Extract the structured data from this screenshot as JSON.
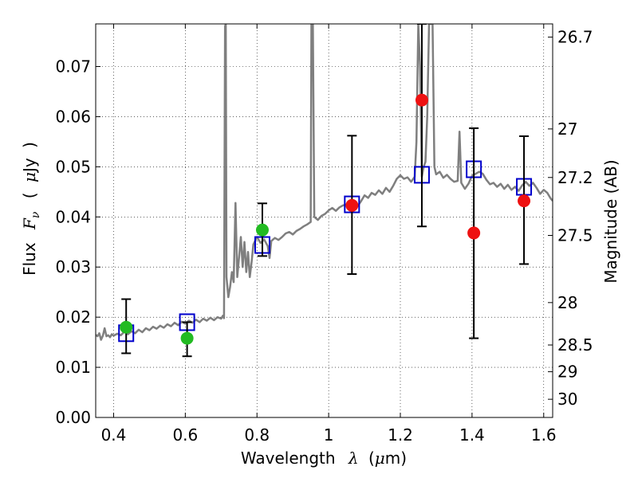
{
  "chart_data": {
    "type": "scatter",
    "x_axis": {
      "label_prefix": "Wavelength",
      "label_symbol": "λ",
      "label_unit_open": "(",
      "label_unit_mu": "μ",
      "label_unit_rest": "m)",
      "range": [
        0.35,
        1.625
      ],
      "ticks": [
        {
          "value": 0.4,
          "label": "0.4"
        },
        {
          "value": 0.6,
          "label": "0.6"
        },
        {
          "value": 0.8,
          "label": "0.8"
        },
        {
          "value": 1.0,
          "label": "1"
        },
        {
          "value": 1.2,
          "label": "1.2"
        },
        {
          "value": 1.4,
          "label": "1.4"
        },
        {
          "value": 1.6,
          "label": "1.6"
        }
      ]
    },
    "y_axis": {
      "label_prefix": "Flux",
      "label_symbol": "F",
      "label_subscript": "ν",
      "label_open": "(",
      "label_mu": "μ",
      "label_unit": "Jy",
      "label_close": ")",
      "range": [
        0.0,
        0.0785
      ],
      "ticks": [
        {
          "value": 0.0,
          "label": "0.00"
        },
        {
          "value": 0.01,
          "label": "0.01"
        },
        {
          "value": 0.02,
          "label": "0.02"
        },
        {
          "value": 0.03,
          "label": "0.03"
        },
        {
          "value": 0.04,
          "label": "0.04"
        },
        {
          "value": 0.05,
          "label": "0.05"
        },
        {
          "value": 0.06,
          "label": "0.06"
        },
        {
          "value": 0.07,
          "label": "0.07"
        }
      ]
    },
    "y2_axis": {
      "label": "Magnitude (AB)",
      "ticks": [
        {
          "value": 26.7,
          "label": "26.7"
        },
        {
          "value": 27.0,
          "label": "27"
        },
        {
          "value": 27.2,
          "label": "27.2"
        },
        {
          "value": 27.5,
          "label": "27.5"
        },
        {
          "value": 28.0,
          "label": "28"
        },
        {
          "value": 28.5,
          "label": "28.5"
        },
        {
          "value": 29.0,
          "label": "29"
        },
        {
          "value": 30.0,
          "label": "30"
        }
      ]
    },
    "grid": true,
    "series": [
      {
        "kind": "spectrum",
        "color": "#7f7f7f",
        "points": [
          [
            0.35,
            0.0165
          ],
          [
            0.355,
            0.0162
          ],
          [
            0.36,
            0.0168
          ],
          [
            0.365,
            0.0155
          ],
          [
            0.37,
            0.0163
          ],
          [
            0.375,
            0.0178
          ],
          [
            0.38,
            0.0162
          ],
          [
            0.385,
            0.0164
          ],
          [
            0.39,
            0.016
          ],
          [
            0.395,
            0.0166
          ],
          [
            0.4,
            0.0163
          ],
          [
            0.41,
            0.0167
          ],
          [
            0.42,
            0.0164
          ],
          [
            0.43,
            0.0171
          ],
          [
            0.44,
            0.0166
          ],
          [
            0.45,
            0.0172
          ],
          [
            0.46,
            0.0168
          ],
          [
            0.47,
            0.0175
          ],
          [
            0.48,
            0.017
          ],
          [
            0.49,
            0.0178
          ],
          [
            0.5,
            0.0174
          ],
          [
            0.51,
            0.0181
          ],
          [
            0.52,
            0.0177
          ],
          [
            0.53,
            0.0183
          ],
          [
            0.54,
            0.0179
          ],
          [
            0.55,
            0.0186
          ],
          [
            0.56,
            0.0182
          ],
          [
            0.57,
            0.0189
          ],
          [
            0.58,
            0.0184
          ],
          [
            0.59,
            0.0191
          ],
          [
            0.6,
            0.0187
          ],
          [
            0.61,
            0.0193
          ],
          [
            0.62,
            0.0189
          ],
          [
            0.63,
            0.0195
          ],
          [
            0.64,
            0.019
          ],
          [
            0.65,
            0.0197
          ],
          [
            0.66,
            0.0193
          ],
          [
            0.67,
            0.0199
          ],
          [
            0.68,
            0.0194
          ],
          [
            0.69,
            0.02
          ],
          [
            0.7,
            0.0197
          ],
          [
            0.705,
            0.0203
          ],
          [
            0.708,
            0.0198
          ],
          [
            0.711,
            0.078
          ],
          [
            0.713,
            0.0785
          ],
          [
            0.715,
            0.028
          ],
          [
            0.72,
            0.024
          ],
          [
            0.725,
            0.026
          ],
          [
            0.73,
            0.029
          ],
          [
            0.735,
            0.027
          ],
          [
            0.74,
            0.0428
          ],
          [
            0.745,
            0.028
          ],
          [
            0.75,
            0.032
          ],
          [
            0.755,
            0.036
          ],
          [
            0.76,
            0.03
          ],
          [
            0.765,
            0.035
          ],
          [
            0.77,
            0.029
          ],
          [
            0.775,
            0.033
          ],
          [
            0.78,
            0.028
          ],
          [
            0.785,
            0.031
          ],
          [
            0.79,
            0.0345
          ],
          [
            0.8,
            0.036
          ],
          [
            0.81,
            0.0348
          ],
          [
            0.82,
            0.0355
          ],
          [
            0.83,
            0.0342
          ],
          [
            0.835,
            0.0318
          ],
          [
            0.84,
            0.0352
          ],
          [
            0.85,
            0.0358
          ],
          [
            0.86,
            0.0354
          ],
          [
            0.87,
            0.036
          ],
          [
            0.88,
            0.0367
          ],
          [
            0.89,
            0.037
          ],
          [
            0.9,
            0.0365
          ],
          [
            0.91,
            0.0372
          ],
          [
            0.92,
            0.0376
          ],
          [
            0.93,
            0.0381
          ],
          [
            0.94,
            0.0385
          ],
          [
            0.95,
            0.039
          ],
          [
            0.952,
            0.0785
          ],
          [
            0.956,
            0.0785
          ],
          [
            0.96,
            0.04
          ],
          [
            0.97,
            0.0394
          ],
          [
            0.98,
            0.0402
          ],
          [
            0.99,
            0.0406
          ],
          [
            1.0,
            0.0413
          ],
          [
            1.01,
            0.0418
          ],
          [
            1.02,
            0.0412
          ],
          [
            1.03,
            0.0419
          ],
          [
            1.04,
            0.0423
          ],
          [
            1.05,
            0.0425
          ],
          [
            1.06,
            0.0427
          ],
          [
            1.07,
            0.0429
          ],
          [
            1.08,
            0.0421
          ],
          [
            1.09,
            0.0431
          ],
          [
            1.1,
            0.0443
          ],
          [
            1.11,
            0.0438
          ],
          [
            1.12,
            0.0448
          ],
          [
            1.13,
            0.0444
          ],
          [
            1.14,
            0.0453
          ],
          [
            1.15,
            0.0446
          ],
          [
            1.16,
            0.0458
          ],
          [
            1.17,
            0.045
          ],
          [
            1.18,
            0.0462
          ],
          [
            1.19,
            0.0476
          ],
          [
            1.2,
            0.0483
          ],
          [
            1.21,
            0.0476
          ],
          [
            1.22,
            0.0479
          ],
          [
            1.23,
            0.047
          ],
          [
            1.24,
            0.048
          ],
          [
            1.245,
            0.055
          ],
          [
            1.25,
            0.0785
          ],
          [
            1.255,
            0.07
          ],
          [
            1.26,
            0.048
          ],
          [
            1.265,
            0.05
          ],
          [
            1.27,
            0.051
          ],
          [
            1.275,
            0.06
          ],
          [
            1.28,
            0.0785
          ],
          [
            1.29,
            0.0785
          ],
          [
            1.295,
            0.05
          ],
          [
            1.3,
            0.0485
          ],
          [
            1.31,
            0.049
          ],
          [
            1.32,
            0.0478
          ],
          [
            1.33,
            0.0484
          ],
          [
            1.34,
            0.0476
          ],
          [
            1.35,
            0.047
          ],
          [
            1.36,
            0.0472
          ],
          [
            1.365,
            0.057
          ],
          [
            1.37,
            0.0468
          ],
          [
            1.38,
            0.0456
          ],
          [
            1.39,
            0.0466
          ],
          [
            1.4,
            0.0482
          ],
          [
            1.41,
            0.0486
          ],
          [
            1.42,
            0.049
          ],
          [
            1.43,
            0.0486
          ],
          [
            1.44,
            0.0474
          ],
          [
            1.45,
            0.0465
          ],
          [
            1.46,
            0.0468
          ],
          [
            1.47,
            0.046
          ],
          [
            1.48,
            0.0466
          ],
          [
            1.49,
            0.0456
          ],
          [
            1.5,
            0.0464
          ],
          [
            1.51,
            0.0454
          ],
          [
            1.52,
            0.046
          ],
          [
            1.53,
            0.0452
          ],
          [
            1.54,
            0.0463
          ],
          [
            1.55,
            0.047
          ],
          [
            1.56,
            0.0462
          ],
          [
            1.57,
            0.0468
          ],
          [
            1.58,
            0.0458
          ],
          [
            1.59,
            0.0446
          ],
          [
            1.6,
            0.0454
          ],
          [
            1.61,
            0.0448
          ],
          [
            1.62,
            0.0436
          ],
          [
            1.625,
            0.0432
          ]
        ]
      },
      {
        "kind": "model_squares",
        "color": "#0000cc",
        "points": [
          [
            0.435,
            0.0168
          ],
          [
            0.605,
            0.019
          ],
          [
            0.815,
            0.0344
          ],
          [
            1.065,
            0.0425
          ],
          [
            1.26,
            0.0484
          ],
          [
            1.405,
            0.0495
          ],
          [
            1.545,
            0.046
          ]
        ]
      },
      {
        "kind": "detections",
        "color": "#22bb22",
        "points": [
          {
            "x": 0.435,
            "y": 0.018,
            "yerr_low": 0.0128,
            "yerr_high": 0.0236
          },
          {
            "x": 0.605,
            "y": 0.0158,
            "yerr_low": 0.0122,
            "yerr_high": 0.019
          },
          {
            "x": 0.815,
            "y": 0.0374,
            "yerr_low": 0.0322,
            "yerr_high": 0.0427
          }
        ]
      },
      {
        "kind": "detections",
        "color": "#ee1111",
        "points": [
          {
            "x": 1.065,
            "y": 0.0423,
            "yerr_low": 0.0286,
            "yerr_high": 0.0562
          },
          {
            "x": 1.26,
            "y": 0.0633,
            "yerr_low": 0.0381,
            "yerr_high": 0.0785
          },
          {
            "x": 1.405,
            "y": 0.0368,
            "yerr_low": 0.0158,
            "yerr_high": 0.0577
          },
          {
            "x": 1.545,
            "y": 0.0432,
            "yerr_low": 0.0306,
            "yerr_high": 0.0561
          }
        ]
      }
    ]
  }
}
